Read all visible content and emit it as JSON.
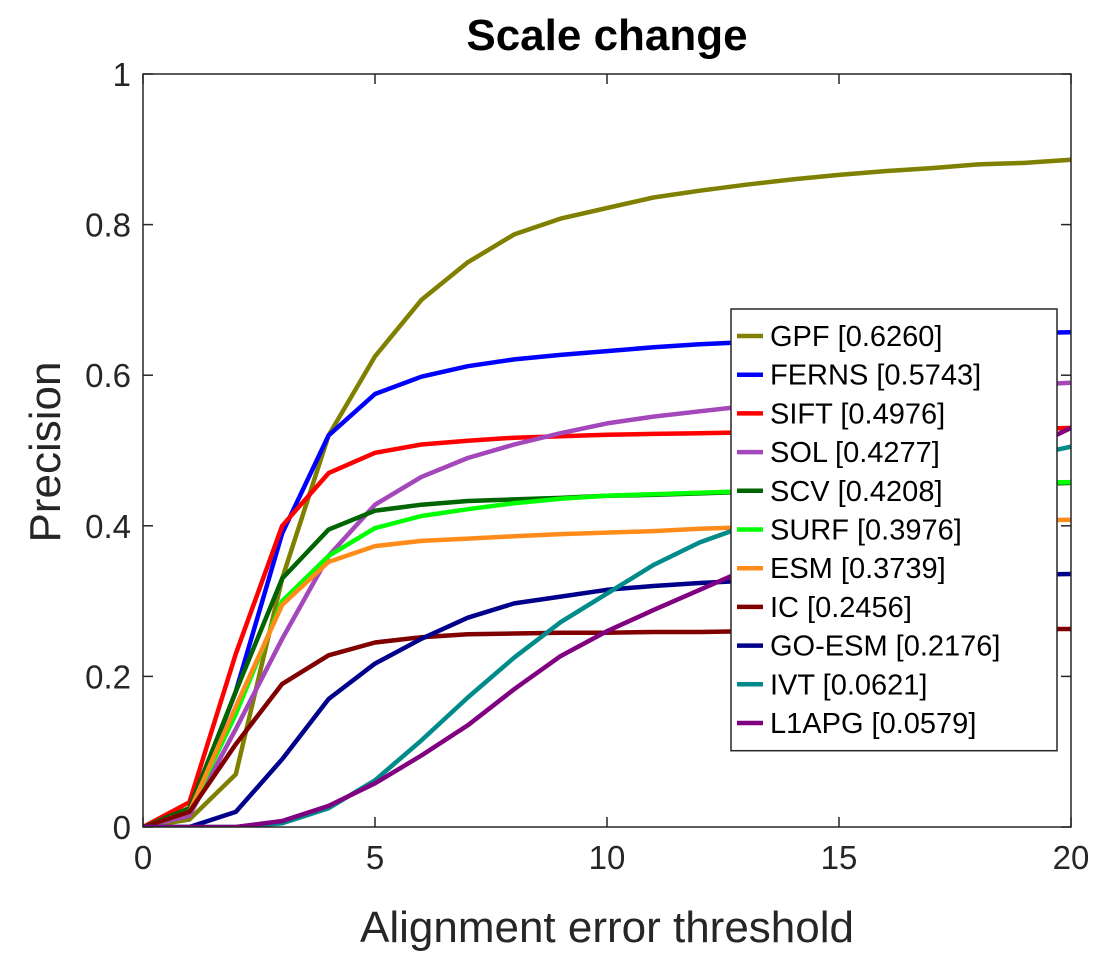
{
  "chart_data": {
    "type": "line",
    "title": "Scale change",
    "xlabel": "Alignment error threshold",
    "ylabel": "Precision",
    "xlim": [
      0,
      20
    ],
    "ylim": [
      0,
      1
    ],
    "xticks": [
      "0",
      "5",
      "10",
      "15",
      "20"
    ],
    "yticks": [
      "0",
      "0.2",
      "0.4",
      "0.6",
      "0.8",
      "1"
    ],
    "grid": false,
    "legend_position": "right",
    "x": [
      0,
      1,
      2,
      3,
      4,
      5,
      6,
      7,
      8,
      9,
      10,
      11,
      12,
      13,
      14,
      15,
      16,
      17,
      18,
      19,
      20
    ],
    "series": [
      {
        "name": "GPF [0.6260]",
        "color": "#808000",
        "values": [
          0,
          0.01,
          0.07,
          0.33,
          0.52,
          0.625,
          0.7,
          0.75,
          0.787,
          0.808,
          0.822,
          0.836,
          0.845,
          0.853,
          0.86,
          0.866,
          0.871,
          0.875,
          0.88,
          0.882,
          0.886
        ]
      },
      {
        "name": "FERNS [0.5743]",
        "color": "#0000ff",
        "values": [
          0,
          0.02,
          0.18,
          0.39,
          0.52,
          0.575,
          0.598,
          0.612,
          0.621,
          0.627,
          0.632,
          0.637,
          0.641,
          0.644,
          0.647,
          0.649,
          0.651,
          0.653,
          0.655,
          0.656,
          0.657
        ]
      },
      {
        "name": "SIFT [0.4976]",
        "color": "#ff0000",
        "values": [
          0,
          0.033,
          0.23,
          0.4,
          0.47,
          0.497,
          0.508,
          0.513,
          0.517,
          0.519,
          0.521,
          0.522,
          0.523,
          0.524,
          0.525,
          0.525,
          0.526,
          0.526,
          0.527,
          0.528,
          0.53
        ]
      },
      {
        "name": "SOL [0.4277]",
        "color": "#a347ba",
        "values": [
          0,
          0.015,
          0.13,
          0.25,
          0.36,
          0.428,
          0.465,
          0.49,
          0.508,
          0.523,
          0.536,
          0.545,
          0.552,
          0.559,
          0.565,
          0.57,
          0.575,
          0.58,
          0.584,
          0.587,
          0.59
        ]
      },
      {
        "name": "SCV [0.4208]",
        "color": "#006400",
        "values": [
          0,
          0.025,
          0.18,
          0.33,
          0.395,
          0.42,
          0.428,
          0.433,
          0.435,
          0.437,
          0.44,
          0.441,
          0.443,
          0.445,
          0.447,
          0.449,
          0.451,
          0.452,
          0.454,
          0.455,
          0.457
        ]
      },
      {
        "name": "SURF [0.3976]",
        "color": "#00ff00",
        "values": [
          0,
          0.02,
          0.15,
          0.3,
          0.36,
          0.397,
          0.413,
          0.422,
          0.43,
          0.436,
          0.44,
          0.442,
          0.444,
          0.446,
          0.448,
          0.45,
          0.452,
          0.454,
          0.456,
          0.457,
          0.458
        ]
      },
      {
        "name": "ESM [0.3739]",
        "color": "#ff8c1a",
        "values": [
          0,
          0.02,
          0.16,
          0.295,
          0.352,
          0.373,
          0.38,
          0.383,
          0.386,
          0.389,
          0.391,
          0.393,
          0.396,
          0.398,
          0.4,
          0.402,
          0.403,
          0.405,
          0.406,
          0.407,
          0.408
        ]
      },
      {
        "name": "IC [0.2456]",
        "color": "#800000",
        "values": [
          0,
          0.02,
          0.11,
          0.19,
          0.228,
          0.245,
          0.252,
          0.256,
          0.257,
          0.258,
          0.258,
          0.259,
          0.259,
          0.26,
          0.26,
          0.261,
          0.261,
          0.262,
          0.262,
          0.263,
          0.263
        ]
      },
      {
        "name": "GO-ESM [0.2176]",
        "color": "#00008b",
        "values": [
          0,
          0,
          0.02,
          0.09,
          0.17,
          0.217,
          0.25,
          0.278,
          0.297,
          0.306,
          0.315,
          0.32,
          0.324,
          0.327,
          0.33,
          0.331,
          0.332,
          0.333,
          0.334,
          0.335,
          0.336
        ]
      },
      {
        "name": "IVT [0.0621]",
        "color": "#008b8b",
        "values": [
          0,
          0,
          0,
          0.005,
          0.025,
          0.062,
          0.115,
          0.172,
          0.225,
          0.272,
          0.31,
          0.348,
          0.378,
          0.4,
          0.42,
          0.437,
          0.452,
          0.465,
          0.478,
          0.492,
          0.505
        ]
      },
      {
        "name": "L1APG [0.0579]",
        "color": "#800080",
        "values": [
          0,
          0,
          0,
          0.008,
          0.028,
          0.058,
          0.095,
          0.135,
          0.183,
          0.227,
          0.26,
          0.288,
          0.315,
          0.342,
          0.367,
          0.39,
          0.414,
          0.44,
          0.47,
          0.5,
          0.53
        ]
      }
    ]
  }
}
